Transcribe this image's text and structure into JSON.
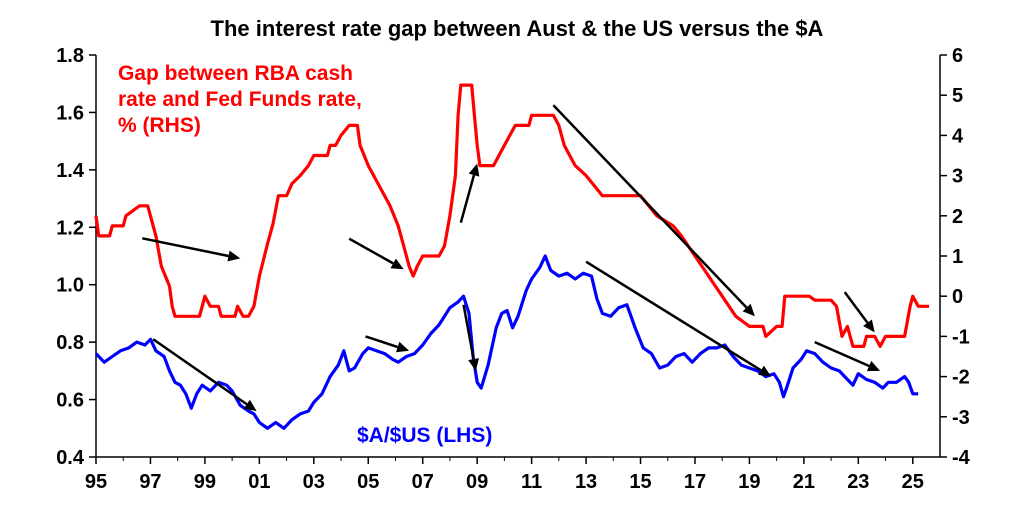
{
  "chart_data": {
    "type": "line",
    "title": "The interest rate gap between Aust & the US versus the $A",
    "x_tick_labels": [
      "95",
      "97",
      "99",
      "01",
      "03",
      "05",
      "07",
      "09",
      "11",
      "13",
      "15",
      "17",
      "19",
      "21",
      "23",
      "25"
    ],
    "y_left": {
      "ylim": [
        0.4,
        1.8
      ],
      "tick_labels": [
        "0.4",
        "0.6",
        "0.8",
        "1.0",
        "1.2",
        "1.4",
        "1.6",
        "1.8"
      ]
    },
    "y_right": {
      "ylim": [
        -4,
        6
      ],
      "tick_labels": [
        "-4",
        "-3",
        "-2",
        "-1",
        "0",
        "1",
        "2",
        "3",
        "4",
        "5",
        "6"
      ]
    },
    "annotations": {
      "red_lines": [
        "Gap between RBA cash",
        "rate and Fed Funds rate,",
        "% (RHS)"
      ],
      "blue_label": "$A/$US (LHS)"
    },
    "colors": {
      "gap": "#ff0000",
      "aud": "#0000ff",
      "arrows": "#000000"
    },
    "series": [
      {
        "axis": "right",
        "color": "#ff0000",
        "points": [
          [
            1995.0,
            2.0
          ],
          [
            1995.1,
            1.5
          ],
          [
            1995.5,
            1.5
          ],
          [
            1995.6,
            1.75
          ],
          [
            1996.0,
            1.75
          ],
          [
            1996.1,
            2.0
          ],
          [
            1996.6,
            2.25
          ],
          [
            1996.9,
            2.25
          ],
          [
            1997.2,
            1.5
          ],
          [
            1997.4,
            0.75
          ],
          [
            1997.7,
            0.25
          ],
          [
            1997.8,
            -0.25
          ],
          [
            1997.9,
            -0.5
          ],
          [
            1998.8,
            -0.5
          ],
          [
            1998.9,
            -0.25
          ],
          [
            1999.0,
            0.0
          ],
          [
            1999.2,
            -0.25
          ],
          [
            1999.5,
            -0.25
          ],
          [
            1999.6,
            -0.5
          ],
          [
            2000.1,
            -0.5
          ],
          [
            2000.2,
            -0.25
          ],
          [
            2000.4,
            -0.5
          ],
          [
            2000.6,
            -0.5
          ],
          [
            2000.8,
            -0.25
          ],
          [
            2001.0,
            0.5
          ],
          [
            2001.3,
            1.3
          ],
          [
            2001.5,
            1.8
          ],
          [
            2001.7,
            2.5
          ],
          [
            2002.0,
            2.5
          ],
          [
            2002.2,
            2.8
          ],
          [
            2002.5,
            3.0
          ],
          [
            2002.8,
            3.25
          ],
          [
            2003.0,
            3.5
          ],
          [
            2003.5,
            3.5
          ],
          [
            2003.6,
            3.75
          ],
          [
            2003.8,
            3.75
          ],
          [
            2004.0,
            4.0
          ],
          [
            2004.3,
            4.25
          ],
          [
            2004.6,
            4.25
          ],
          [
            2004.7,
            3.75
          ],
          [
            2005.0,
            3.25
          ],
          [
            2005.4,
            2.75
          ],
          [
            2005.8,
            2.25
          ],
          [
            2006.1,
            1.75
          ],
          [
            2006.3,
            1.25
          ],
          [
            2006.5,
            0.75
          ],
          [
            2006.65,
            0.5
          ],
          [
            2006.8,
            0.75
          ],
          [
            2007.0,
            1.0
          ],
          [
            2007.6,
            1.0
          ],
          [
            2007.8,
            1.25
          ],
          [
            2008.0,
            2.0
          ],
          [
            2008.2,
            3.0
          ],
          [
            2008.3,
            4.5
          ],
          [
            2008.4,
            5.25
          ],
          [
            2008.8,
            5.25
          ],
          [
            2008.9,
            4.5
          ],
          [
            2009.0,
            3.75
          ],
          [
            2009.1,
            3.25
          ],
          [
            2009.6,
            3.25
          ],
          [
            2009.8,
            3.5
          ],
          [
            2010.0,
            3.75
          ],
          [
            2010.2,
            4.0
          ],
          [
            2010.4,
            4.25
          ],
          [
            2010.9,
            4.25
          ],
          [
            2011.0,
            4.5
          ],
          [
            2011.8,
            4.5
          ],
          [
            2012.0,
            4.25
          ],
          [
            2012.2,
            3.75
          ],
          [
            2012.4,
            3.5
          ],
          [
            2012.6,
            3.25
          ],
          [
            2013.0,
            3.0
          ],
          [
            2013.3,
            2.75
          ],
          [
            2013.6,
            2.5
          ],
          [
            2015.0,
            2.5
          ],
          [
            2015.3,
            2.25
          ],
          [
            2015.6,
            2.0
          ],
          [
            2016.2,
            1.75
          ],
          [
            2016.5,
            1.5
          ],
          [
            2017.0,
            1.0
          ],
          [
            2017.5,
            0.5
          ],
          [
            2018.0,
            0.0
          ],
          [
            2018.5,
            -0.5
          ],
          [
            2019.0,
            -0.75
          ],
          [
            2019.5,
            -0.75
          ],
          [
            2019.6,
            -1.0
          ],
          [
            2020.0,
            -0.75
          ],
          [
            2020.2,
            -0.75
          ],
          [
            2020.3,
            0.0
          ],
          [
            2021.2,
            0.0
          ],
          [
            2021.4,
            -0.1
          ],
          [
            2022.0,
            -0.1
          ],
          [
            2022.2,
            -0.25
          ],
          [
            2022.4,
            -1.0
          ],
          [
            2022.6,
            -0.75
          ],
          [
            2022.8,
            -1.25
          ],
          [
            2023.2,
            -1.25
          ],
          [
            2023.3,
            -1.0
          ],
          [
            2023.6,
            -1.0
          ],
          [
            2023.8,
            -1.25
          ],
          [
            2024.0,
            -1.0
          ],
          [
            2024.7,
            -1.0
          ],
          [
            2024.9,
            -0.25
          ],
          [
            2025.0,
            0.0
          ],
          [
            2025.2,
            -0.25
          ],
          [
            2025.6,
            -0.25
          ]
        ]
      },
      {
        "axis": "left",
        "color": "#0000ff",
        "points": [
          [
            1995.0,
            0.76
          ],
          [
            1995.3,
            0.73
          ],
          [
            1995.6,
            0.75
          ],
          [
            1995.9,
            0.77
          ],
          [
            1996.2,
            0.78
          ],
          [
            1996.5,
            0.8
          ],
          [
            1996.8,
            0.79
          ],
          [
            1997.0,
            0.81
          ],
          [
            1997.2,
            0.77
          ],
          [
            1997.5,
            0.75
          ],
          [
            1997.7,
            0.7
          ],
          [
            1997.9,
            0.66
          ],
          [
            1998.1,
            0.65
          ],
          [
            1998.3,
            0.62
          ],
          [
            1998.5,
            0.57
          ],
          [
            1998.7,
            0.62
          ],
          [
            1998.9,
            0.65
          ],
          [
            1999.2,
            0.63
          ],
          [
            1999.5,
            0.66
          ],
          [
            1999.8,
            0.65
          ],
          [
            2000.0,
            0.63
          ],
          [
            2000.3,
            0.58
          ],
          [
            2000.6,
            0.56
          ],
          [
            2000.8,
            0.55
          ],
          [
            2001.0,
            0.52
          ],
          [
            2001.3,
            0.5
          ],
          [
            2001.6,
            0.52
          ],
          [
            2001.9,
            0.5
          ],
          [
            2002.2,
            0.53
          ],
          [
            2002.5,
            0.55
          ],
          [
            2002.8,
            0.56
          ],
          [
            2003.0,
            0.59
          ],
          [
            2003.3,
            0.62
          ],
          [
            2003.6,
            0.68
          ],
          [
            2003.9,
            0.72
          ],
          [
            2004.1,
            0.77
          ],
          [
            2004.3,
            0.7
          ],
          [
            2004.5,
            0.71
          ],
          [
            2004.8,
            0.76
          ],
          [
            2005.0,
            0.78
          ],
          [
            2005.3,
            0.77
          ],
          [
            2005.6,
            0.76
          ],
          [
            2005.9,
            0.74
          ],
          [
            2006.1,
            0.73
          ],
          [
            2006.4,
            0.75
          ],
          [
            2006.7,
            0.76
          ],
          [
            2007.0,
            0.79
          ],
          [
            2007.3,
            0.83
          ],
          [
            2007.6,
            0.86
          ],
          [
            2007.8,
            0.89
          ],
          [
            2008.0,
            0.92
          ],
          [
            2008.3,
            0.94
          ],
          [
            2008.5,
            0.96
          ],
          [
            2008.7,
            0.9
          ],
          [
            2008.85,
            0.75
          ],
          [
            2009.0,
            0.66
          ],
          [
            2009.15,
            0.64
          ],
          [
            2009.4,
            0.72
          ],
          [
            2009.7,
            0.85
          ],
          [
            2009.9,
            0.9
          ],
          [
            2010.1,
            0.91
          ],
          [
            2010.3,
            0.85
          ],
          [
            2010.5,
            0.89
          ],
          [
            2010.8,
            0.98
          ],
          [
            2011.0,
            1.02
          ],
          [
            2011.3,
            1.06
          ],
          [
            2011.5,
            1.1
          ],
          [
            2011.7,
            1.05
          ],
          [
            2012.0,
            1.03
          ],
          [
            2012.3,
            1.04
          ],
          [
            2012.6,
            1.02
          ],
          [
            2012.9,
            1.04
          ],
          [
            2013.2,
            1.03
          ],
          [
            2013.4,
            0.95
          ],
          [
            2013.6,
            0.9
          ],
          [
            2013.9,
            0.89
          ],
          [
            2014.2,
            0.92
          ],
          [
            2014.5,
            0.93
          ],
          [
            2014.8,
            0.85
          ],
          [
            2015.1,
            0.78
          ],
          [
            2015.4,
            0.76
          ],
          [
            2015.7,
            0.71
          ],
          [
            2016.0,
            0.72
          ],
          [
            2016.3,
            0.75
          ],
          [
            2016.6,
            0.76
          ],
          [
            2016.9,
            0.73
          ],
          [
            2017.2,
            0.76
          ],
          [
            2017.5,
            0.78
          ],
          [
            2017.8,
            0.78
          ],
          [
            2018.1,
            0.79
          ],
          [
            2018.4,
            0.75
          ],
          [
            2018.7,
            0.72
          ],
          [
            2019.0,
            0.71
          ],
          [
            2019.3,
            0.7
          ],
          [
            2019.6,
            0.68
          ],
          [
            2019.9,
            0.69
          ],
          [
            2020.1,
            0.66
          ],
          [
            2020.25,
            0.61
          ],
          [
            2020.4,
            0.65
          ],
          [
            2020.6,
            0.71
          ],
          [
            2020.9,
            0.74
          ],
          [
            2021.1,
            0.77
          ],
          [
            2021.4,
            0.76
          ],
          [
            2021.7,
            0.73
          ],
          [
            2022.0,
            0.71
          ],
          [
            2022.3,
            0.7
          ],
          [
            2022.5,
            0.68
          ],
          [
            2022.8,
            0.65
          ],
          [
            2023.0,
            0.69
          ],
          [
            2023.3,
            0.67
          ],
          [
            2023.6,
            0.66
          ],
          [
            2023.9,
            0.64
          ],
          [
            2024.1,
            0.66
          ],
          [
            2024.4,
            0.66
          ],
          [
            2024.7,
            0.68
          ],
          [
            2024.85,
            0.66
          ],
          [
            2025.0,
            0.62
          ],
          [
            2025.2,
            0.62
          ]
        ]
      }
    ],
    "arrows": [
      [
        1996.7,
        1.44,
        2000.3,
        0.94
      ],
      [
        2004.3,
        1.43,
        2006.3,
        0.67
      ],
      [
        2008.4,
        1.83,
        2009.0,
        3.3
      ],
      [
        2011.8,
        4.75,
        2019.2,
        -0.5
      ],
      [
        2022.5,
        0.1,
        2023.6,
        -0.9
      ],
      [
        1997.1,
        0.81,
        2000.9,
        0.56
      ],
      [
        2004.9,
        0.82,
        2006.5,
        0.77
      ],
      [
        2008.5,
        0.93,
        2008.95,
        0.7
      ],
      [
        2013.0,
        1.08,
        2019.8,
        0.68
      ],
      [
        2021.4,
        0.8,
        2023.8,
        0.7
      ]
    ]
  }
}
